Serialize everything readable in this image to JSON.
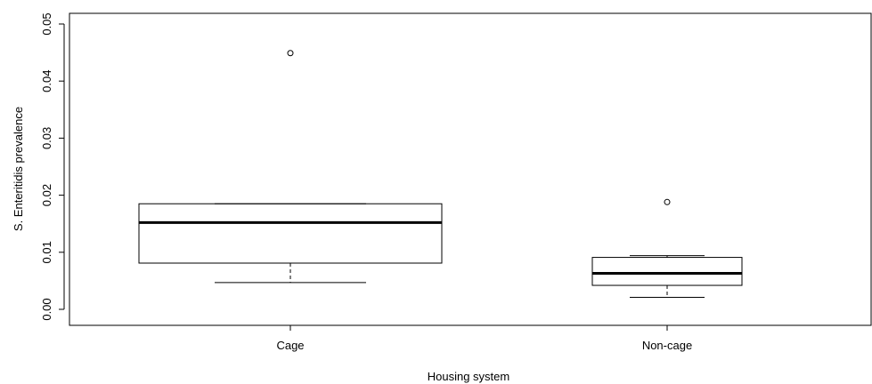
{
  "chart_data": {
    "type": "boxplot",
    "xlabel": "Housing system",
    "ylabel": "S. Enteritidis prevalence",
    "ylim": [
      0,
      0.05
    ],
    "yticks": [
      "0.00",
      "0.01",
      "0.02",
      "0.03",
      "0.04",
      "0.05"
    ],
    "grid": false,
    "categories": [
      "Cage",
      "Non-cage"
    ],
    "boxes": [
      {
        "category": "Cage",
        "whisker_low": 0.0047,
        "q1": 0.0081,
        "median": 0.0152,
        "q3": 0.0185,
        "whisker_high": 0.0185,
        "outliers": [
          0.0449
        ]
      },
      {
        "category": "Non-cage",
        "whisker_low": 0.0021,
        "q1": 0.0042,
        "median": 0.0063,
        "q3": 0.0091,
        "whisker_high": 0.0094,
        "outliers": [
          0.0188
        ]
      }
    ],
    "colors": {
      "stroke": "#000000",
      "background": "#ffffff"
    }
  }
}
